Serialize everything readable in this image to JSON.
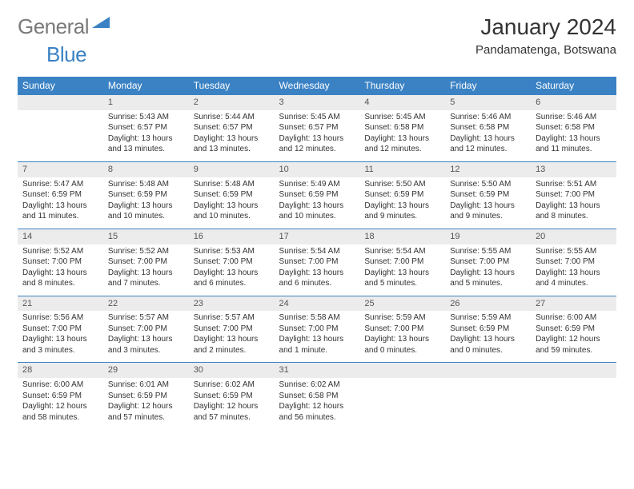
{
  "logo": {
    "text1": "General",
    "text2": "Blue"
  },
  "title": "January 2024",
  "location": "Pandamatenga, Botswana",
  "colors": {
    "header_bg": "#3b82c4",
    "header_text": "#ffffff",
    "daynum_bg": "#ececec",
    "border": "#3b82c4",
    "body_text": "#333333",
    "logo_gray": "#7a7a7a",
    "logo_blue": "#3b82c4"
  },
  "day_headers": [
    "Sunday",
    "Monday",
    "Tuesday",
    "Wednesday",
    "Thursday",
    "Friday",
    "Saturday"
  ],
  "weeks": [
    {
      "nums": [
        "",
        "1",
        "2",
        "3",
        "4",
        "5",
        "6"
      ],
      "cells": [
        null,
        {
          "sunrise": "Sunrise: 5:43 AM",
          "sunset": "Sunset: 6:57 PM",
          "d1": "Daylight: 13 hours",
          "d2": "and 13 minutes."
        },
        {
          "sunrise": "Sunrise: 5:44 AM",
          "sunset": "Sunset: 6:57 PM",
          "d1": "Daylight: 13 hours",
          "d2": "and 13 minutes."
        },
        {
          "sunrise": "Sunrise: 5:45 AM",
          "sunset": "Sunset: 6:57 PM",
          "d1": "Daylight: 13 hours",
          "d2": "and 12 minutes."
        },
        {
          "sunrise": "Sunrise: 5:45 AM",
          "sunset": "Sunset: 6:58 PM",
          "d1": "Daylight: 13 hours",
          "d2": "and 12 minutes."
        },
        {
          "sunrise": "Sunrise: 5:46 AM",
          "sunset": "Sunset: 6:58 PM",
          "d1": "Daylight: 13 hours",
          "d2": "and 12 minutes."
        },
        {
          "sunrise": "Sunrise: 5:46 AM",
          "sunset": "Sunset: 6:58 PM",
          "d1": "Daylight: 13 hours",
          "d2": "and 11 minutes."
        }
      ]
    },
    {
      "nums": [
        "7",
        "8",
        "9",
        "10",
        "11",
        "12",
        "13"
      ],
      "cells": [
        {
          "sunrise": "Sunrise: 5:47 AM",
          "sunset": "Sunset: 6:59 PM",
          "d1": "Daylight: 13 hours",
          "d2": "and 11 minutes."
        },
        {
          "sunrise": "Sunrise: 5:48 AM",
          "sunset": "Sunset: 6:59 PM",
          "d1": "Daylight: 13 hours",
          "d2": "and 10 minutes."
        },
        {
          "sunrise": "Sunrise: 5:48 AM",
          "sunset": "Sunset: 6:59 PM",
          "d1": "Daylight: 13 hours",
          "d2": "and 10 minutes."
        },
        {
          "sunrise": "Sunrise: 5:49 AM",
          "sunset": "Sunset: 6:59 PM",
          "d1": "Daylight: 13 hours",
          "d2": "and 10 minutes."
        },
        {
          "sunrise": "Sunrise: 5:50 AM",
          "sunset": "Sunset: 6:59 PM",
          "d1": "Daylight: 13 hours",
          "d2": "and 9 minutes."
        },
        {
          "sunrise": "Sunrise: 5:50 AM",
          "sunset": "Sunset: 6:59 PM",
          "d1": "Daylight: 13 hours",
          "d2": "and 9 minutes."
        },
        {
          "sunrise": "Sunrise: 5:51 AM",
          "sunset": "Sunset: 7:00 PM",
          "d1": "Daylight: 13 hours",
          "d2": "and 8 minutes."
        }
      ]
    },
    {
      "nums": [
        "14",
        "15",
        "16",
        "17",
        "18",
        "19",
        "20"
      ],
      "cells": [
        {
          "sunrise": "Sunrise: 5:52 AM",
          "sunset": "Sunset: 7:00 PM",
          "d1": "Daylight: 13 hours",
          "d2": "and 8 minutes."
        },
        {
          "sunrise": "Sunrise: 5:52 AM",
          "sunset": "Sunset: 7:00 PM",
          "d1": "Daylight: 13 hours",
          "d2": "and 7 minutes."
        },
        {
          "sunrise": "Sunrise: 5:53 AM",
          "sunset": "Sunset: 7:00 PM",
          "d1": "Daylight: 13 hours",
          "d2": "and 6 minutes."
        },
        {
          "sunrise": "Sunrise: 5:54 AM",
          "sunset": "Sunset: 7:00 PM",
          "d1": "Daylight: 13 hours",
          "d2": "and 6 minutes."
        },
        {
          "sunrise": "Sunrise: 5:54 AM",
          "sunset": "Sunset: 7:00 PM",
          "d1": "Daylight: 13 hours",
          "d2": "and 5 minutes."
        },
        {
          "sunrise": "Sunrise: 5:55 AM",
          "sunset": "Sunset: 7:00 PM",
          "d1": "Daylight: 13 hours",
          "d2": "and 5 minutes."
        },
        {
          "sunrise": "Sunrise: 5:55 AM",
          "sunset": "Sunset: 7:00 PM",
          "d1": "Daylight: 13 hours",
          "d2": "and 4 minutes."
        }
      ]
    },
    {
      "nums": [
        "21",
        "22",
        "23",
        "24",
        "25",
        "26",
        "27"
      ],
      "cells": [
        {
          "sunrise": "Sunrise: 5:56 AM",
          "sunset": "Sunset: 7:00 PM",
          "d1": "Daylight: 13 hours",
          "d2": "and 3 minutes."
        },
        {
          "sunrise": "Sunrise: 5:57 AM",
          "sunset": "Sunset: 7:00 PM",
          "d1": "Daylight: 13 hours",
          "d2": "and 3 minutes."
        },
        {
          "sunrise": "Sunrise: 5:57 AM",
          "sunset": "Sunset: 7:00 PM",
          "d1": "Daylight: 13 hours",
          "d2": "and 2 minutes."
        },
        {
          "sunrise": "Sunrise: 5:58 AM",
          "sunset": "Sunset: 7:00 PM",
          "d1": "Daylight: 13 hours",
          "d2": "and 1 minute."
        },
        {
          "sunrise": "Sunrise: 5:59 AM",
          "sunset": "Sunset: 7:00 PM",
          "d1": "Daylight: 13 hours",
          "d2": "and 0 minutes."
        },
        {
          "sunrise": "Sunrise: 5:59 AM",
          "sunset": "Sunset: 6:59 PM",
          "d1": "Daylight: 13 hours",
          "d2": "and 0 minutes."
        },
        {
          "sunrise": "Sunrise: 6:00 AM",
          "sunset": "Sunset: 6:59 PM",
          "d1": "Daylight: 12 hours",
          "d2": "and 59 minutes."
        }
      ]
    },
    {
      "nums": [
        "28",
        "29",
        "30",
        "31",
        "",
        "",
        ""
      ],
      "cells": [
        {
          "sunrise": "Sunrise: 6:00 AM",
          "sunset": "Sunset: 6:59 PM",
          "d1": "Daylight: 12 hours",
          "d2": "and 58 minutes."
        },
        {
          "sunrise": "Sunrise: 6:01 AM",
          "sunset": "Sunset: 6:59 PM",
          "d1": "Daylight: 12 hours",
          "d2": "and 57 minutes."
        },
        {
          "sunrise": "Sunrise: 6:02 AM",
          "sunset": "Sunset: 6:59 PM",
          "d1": "Daylight: 12 hours",
          "d2": "and 57 minutes."
        },
        {
          "sunrise": "Sunrise: 6:02 AM",
          "sunset": "Sunset: 6:58 PM",
          "d1": "Daylight: 12 hours",
          "d2": "and 56 minutes."
        },
        null,
        null,
        null
      ]
    }
  ]
}
